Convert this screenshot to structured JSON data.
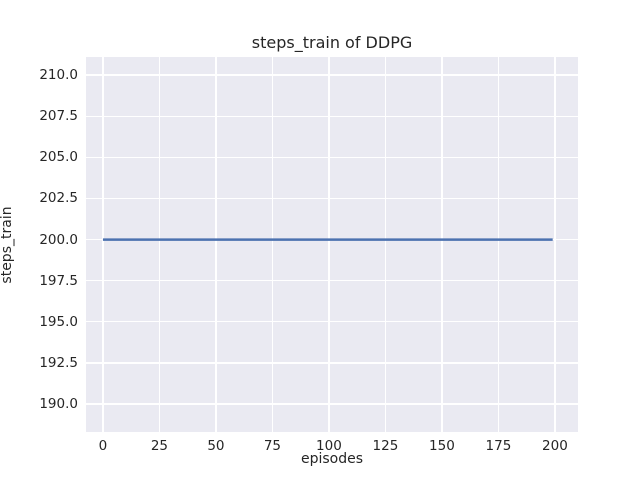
{
  "chart_data": {
    "type": "line",
    "title": "steps_train of DDPG",
    "xlabel": "episodes",
    "ylabel": "steps_train",
    "x_ticks": [
      0,
      25,
      50,
      75,
      100,
      125,
      150,
      175,
      200
    ],
    "x_tick_labels": [
      "0",
      "25",
      "50",
      "75",
      "100",
      "125",
      "150",
      "175",
      "200"
    ],
    "y_ticks": [
      190.0,
      192.5,
      195.0,
      197.5,
      200.0,
      202.5,
      205.0,
      207.5,
      210.0
    ],
    "y_tick_labels": [
      "190.0",
      "192.5",
      "195.0",
      "197.5",
      "200.0",
      "202.5",
      "205.0",
      "207.5",
      "210.0"
    ],
    "xlim": [
      -7.5,
      210.2
    ],
    "ylim": [
      188.3,
      211.1
    ],
    "grid": true,
    "legend": null,
    "plot_background_color": "#eaeaf2",
    "grid_color": "#ffffff",
    "text_color": "#262626",
    "series": [
      {
        "name": "steps_train",
        "color": "#4c72b0",
        "line_width": 2.5,
        "x": [
          0,
          199
        ],
        "y": [
          200,
          200
        ]
      }
    ]
  }
}
